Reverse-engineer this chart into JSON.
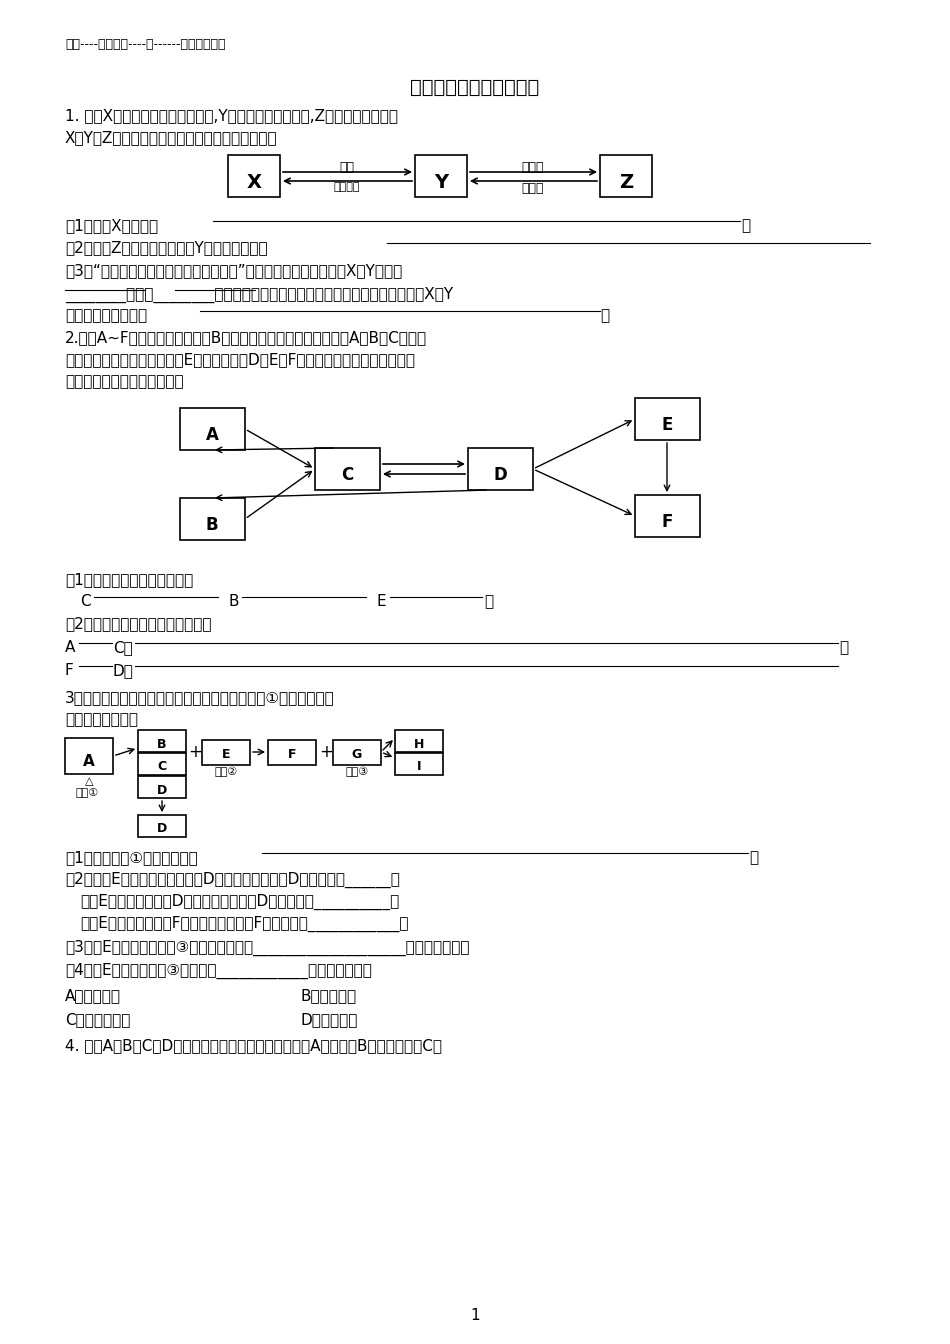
{
  "header": "邢台----桥西二中----刘------初三复习训练",
  "title": "最新中考化学物质推断题",
  "bg_color": "#ffffff",
  "text_color": "#000000",
  "para1_line1": "1. 已知X是有毒且不溶于水的气体,Y是不支持燃烧的气体,Z是不溶于水的固体",
  "para1_line2": "X、Y、Z之间有如下转化关系。请回答下列问题。",
  "diag1_top_label": "点燃",
  "diag1_bot_label": "灼热碳层",
  "diag1_top_label2": "石灰水",
  "diag1_bot_label2": "稀盐酸",
  "para2_line1": "2.现有A~F六种常见物质，其中B是食品包装中的常用的干燥剂，A、B、C三种白",
  "para2_line2": "色固体都含有同种金属元素，E是固体单质，D、E、F都含有同种非金属元素，它们",
  "para2_line3": "的转化关系如下图。请回答：",
  "para3_line1": "3．下图中物质是你在初中化学中见过的物质。除①外，其他反应",
  "para3_line2": "的条件均已略去。",
  "para4_line1": "4. 已知A、B、C、D四种物质都含有同一种元素，其中A是单质，B是黑色固体，C是",
  "page_num": "1",
  "q1_3": "(3) 物质的组成与结构决定物质的性质 是重要的化学思想。气体X、Y都含有"
}
